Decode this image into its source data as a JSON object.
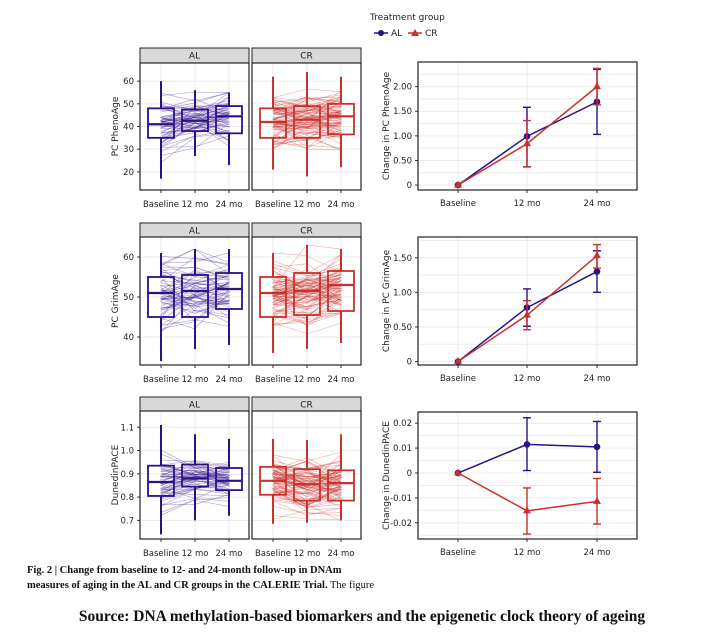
{
  "legend": {
    "title": "Treatment group",
    "items": [
      {
        "label": "AL",
        "color": "#2e0f8a",
        "marker": "circle"
      },
      {
        "label": "CR",
        "color": "#c8312c",
        "marker": "triangle"
      }
    ]
  },
  "caption": {
    "bold": "Fig. 2 | Change from baseline to 12- and 24-month follow-up in DNAm measures of aging in the AL and CR groups in the CALERIE Trial.",
    "bold_line1": "Fig. 2 | Change from baseline to 12- and 24-month follow-up in DNAm",
    "bold_line2": "measures of aging in the AL and CR groups in the CALERIE Trial.",
    "regular": " The figure"
  },
  "source": "Source: DNA methylation-based biomarkers and the epigenetic clock theory of ageing",
  "chart_data": [
    {
      "type": "box",
      "ylabel": "PC PhenoAge",
      "categories": [
        "Baseline",
        "12 mo",
        "24 mo"
      ],
      "yticks": [
        "20",
        "30",
        "40",
        "50",
        "60"
      ],
      "ylim": [
        12,
        68
      ],
      "panels": [
        {
          "name": "AL",
          "color": "#2e0f8a",
          "boxes": [
            [
              17,
              35,
              41,
              48,
              60
            ],
            [
              27,
              38,
              42.5,
              47.5,
              56
            ],
            [
              23,
              37,
              44.5,
              49,
              55
            ]
          ]
        },
        {
          "name": "CR",
          "color": "#c8312c",
          "boxes": [
            [
              21,
              35,
              42,
              48,
              62
            ],
            [
              18,
              35,
              43,
              49,
              64
            ],
            [
              22,
              36.5,
              44.5,
              50,
              62
            ]
          ]
        }
      ]
    },
    {
      "type": "line",
      "ylabel": "Change in PC PhenoAge",
      "categories": [
        "Baseline",
        "12 mo",
        "24 mo"
      ],
      "yticks": [
        "0",
        "0.50",
        "1.00",
        "1.50",
        "2.00"
      ],
      "ylim": [
        -0.1,
        2.5
      ],
      "series": [
        {
          "name": "AL",
          "color": "#2e0f8a",
          "values": [
            0,
            0.99,
            1.69
          ],
          "lower": [
            0,
            0.37,
            1.03
          ],
          "upper": [
            0,
            1.58,
            2.35
          ]
        },
        {
          "name": "CR",
          "color": "#c8312c",
          "values": [
            0,
            0.84,
            2.0
          ],
          "lower": [
            0,
            0.37,
            1.63
          ],
          "upper": [
            0,
            1.31,
            2.37
          ]
        }
      ]
    },
    {
      "type": "box",
      "ylabel": "PC GrimAge",
      "categories": [
        "Baseline",
        "12 mo",
        "24 mo"
      ],
      "yticks": [
        "40",
        "50",
        "60"
      ],
      "ylim": [
        33,
        65
      ],
      "panels": [
        {
          "name": "AL",
          "color": "#2e0f8a",
          "boxes": [
            [
              34,
              45,
              51,
              55,
              61
            ],
            [
              37,
              45,
              51.5,
              55.5,
              62
            ],
            [
              38,
              47,
              52,
              56,
              62
            ]
          ]
        },
        {
          "name": "CR",
          "color": "#c8312c",
          "boxes": [
            [
              36,
              45,
              51,
              55,
              61
            ],
            [
              37,
              45.5,
              51.5,
              56,
              63
            ],
            [
              38.5,
              46.5,
              53,
              56.5,
              62
            ]
          ]
        }
      ]
    },
    {
      "type": "line",
      "ylabel": "Change in PC GrimAge",
      "categories": [
        "Baseline",
        "12 mo",
        "24 mo"
      ],
      "yticks": [
        "0",
        "0.50",
        "1.00",
        "1.50"
      ],
      "ylim": [
        -0.05,
        1.8
      ],
      "series": [
        {
          "name": "AL",
          "color": "#2e0f8a",
          "values": [
            0,
            0.78,
            1.3
          ],
          "lower": [
            0,
            0.51,
            1.0
          ],
          "upper": [
            0,
            1.05,
            1.6
          ]
        },
        {
          "name": "CR",
          "color": "#c8312c",
          "values": [
            0,
            0.67,
            1.53
          ],
          "lower": [
            0,
            0.46,
            1.35
          ],
          "upper": [
            0,
            0.88,
            1.69
          ]
        }
      ]
    },
    {
      "type": "box",
      "ylabel": "DunedinPACE",
      "categories": [
        "Baseline",
        "12 mo",
        "24 mo"
      ],
      "yticks": [
        "0.7",
        "0.8",
        "0.9",
        "1.0",
        "1.1"
      ],
      "ylim": [
        0.62,
        1.17
      ],
      "panels": [
        {
          "name": "AL",
          "color": "#2e0f8a",
          "boxes": [
            [
              0.64,
              0.805,
              0.865,
              0.935,
              1.11
            ],
            [
              0.7,
              0.845,
              0.88,
              0.94,
              1.07
            ],
            [
              0.72,
              0.83,
              0.87,
              0.925,
              1.05
            ]
          ]
        },
        {
          "name": "CR",
          "color": "#c8312c",
          "boxes": [
            [
              0.685,
              0.81,
              0.87,
              0.93,
              1.05
            ],
            [
              0.69,
              0.785,
              0.855,
              0.92,
              1.045
            ],
            [
              0.7,
              0.785,
              0.86,
              0.915,
              1.07
            ]
          ]
        }
      ]
    },
    {
      "type": "line",
      "ylabel": "Change in DunedinPACE",
      "categories": [
        "Baseline",
        "12 mo",
        "24 mo"
      ],
      "yticks": [
        "-0.02",
        "-0.01",
        "0",
        "0.01",
        "0.02"
      ],
      "ylim": [
        -0.0265,
        0.0245
      ],
      "series": [
        {
          "name": "AL",
          "color": "#2e0f8a",
          "values": [
            0,
            0.0115,
            0.0105
          ],
          "lower": [
            0,
            0.001,
            0.0003
          ],
          "upper": [
            0,
            0.0222,
            0.0207
          ]
        },
        {
          "name": "CR",
          "color": "#c8312c",
          "values": [
            0,
            -0.0152,
            -0.0114
          ],
          "lower": [
            0,
            -0.0245,
            -0.0205
          ],
          "upper": [
            0,
            -0.006,
            -0.0022
          ]
        }
      ]
    }
  ]
}
